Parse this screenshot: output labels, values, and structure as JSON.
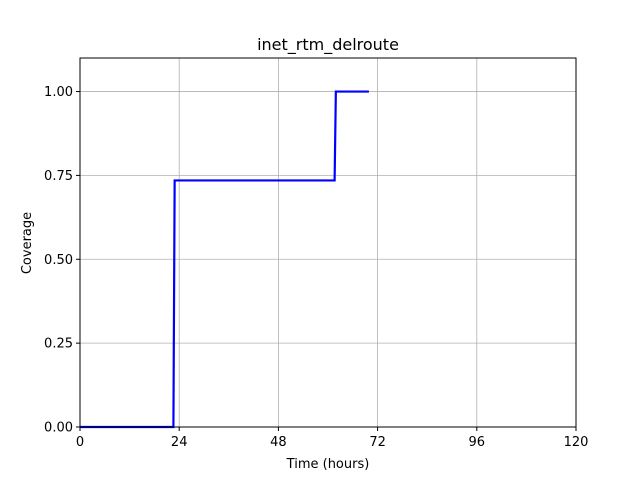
{
  "chart_data": {
    "type": "line",
    "title": "inet_rtm_delroute",
    "xlabel": "Time (hours)",
    "ylabel": "Coverage",
    "xlim": [
      0,
      120
    ],
    "ylim": [
      0,
      1.1
    ],
    "xticks": [
      0,
      24,
      48,
      72,
      96,
      120
    ],
    "xtick_labels": [
      "0",
      "24",
      "48",
      "72",
      "96",
      "120"
    ],
    "yticks": [
      0,
      0.25,
      0.5,
      0.75,
      1.0
    ],
    "ytick_labels": [
      "0.00",
      "0.25",
      "0.50",
      "0.75",
      "1.00"
    ],
    "grid": true,
    "series": [
      {
        "color": "#0000ff",
        "x": [
          0,
          22.6,
          22.9,
          61.6,
          61.9,
          69.9
        ],
        "y": [
          0,
          0,
          0.735,
          0.735,
          1.0,
          1.0
        ]
      }
    ]
  }
}
